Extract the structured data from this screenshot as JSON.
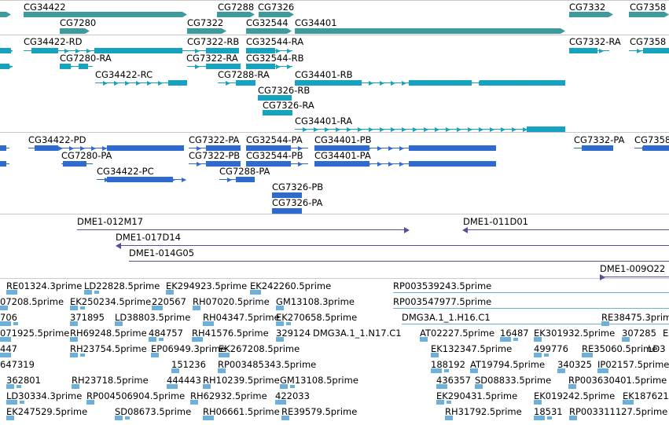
{
  "colors": {
    "gene": "#3e9a9c",
    "transcript": "#17a2c2",
    "protein": "#2f6ad0",
    "clone": "#5c4a9e",
    "est": "#6cb0de"
  },
  "gene_track": {
    "labels": [
      "CG34422",
      "CG7288",
      "CG7326",
      "CG7332",
      "CG7358",
      "CG7280",
      "CG7322",
      "CG32544",
      "CG34401"
    ]
  },
  "transcript_track": {
    "labels": [
      "CG34422-RD",
      "CG7322-RB",
      "CG32544-RA",
      "CG7332-RA",
      "CG7358",
      "CG7280-RA",
      "CG7322-RA",
      "CG32544-RB",
      "CG34422-RC",
      "CG7288-RA",
      "CG34401-RB",
      "CG7326-RB",
      "CG7326-RA",
      "CG34401-RA"
    ]
  },
  "protein_track": {
    "labels": [
      "CG34422-PD",
      "CG7322-PA",
      "CG32544-PA",
      "CG34401-PB",
      "CG7332-PA",
      "CG7358",
      "CG7280-PA",
      "CG7322-PB",
      "CG32544-PB",
      "CG34401-PA",
      "CG34422-PC",
      "CG7288-PA",
      "CG7326-PB",
      "CG7326-PA"
    ]
  },
  "clone_track": {
    "labels": [
      "DME1-012M17",
      "DME1-011D01",
      "DME1-017D14",
      "DME1-014G05",
      "DME1-009O22"
    ]
  },
  "est_track": {
    "labels": [
      "RE01324.3prime",
      "LD22828.5prime",
      "EK294923.5prime",
      "EK242260.5prime",
      "RP003539243.5prime",
      "07208.5prime",
      "EK250234.5prime",
      "220567",
      "RH07020.5prime",
      "GM13108.3prime",
      "RP003547977.5prime",
      "706",
      "371895",
      "LD38803.5prime",
      "RH04347.5prime",
      "EK270658.5prime",
      "DMG3A.1_1.H16.C1",
      "RE38475.3prime",
      "071925.5prime",
      "RH69248.5prime",
      "484757",
      "RH41576.5prime",
      "329124",
      "DMG3A.1_1.N17.C1",
      "AT02227.5prime",
      "16487",
      "EK301932.5prime",
      "307285",
      "EM",
      "447",
      "RH23754.5prime",
      "EP06949.3prime",
      "EK267208.5prime",
      "EK132347.5prime",
      "499776",
      "RE35060.5prime",
      "LD3",
      "647319",
      "151236",
      "RP003485343.5prime",
      "188192",
      "AT19794.5prime",
      "340325",
      "IP02157.5prime",
      "362801",
      "RH23718.5prime",
      "444443",
      "RH10239.5prime",
      "GM13108.5prime",
      "436357",
      "SD08833.5prime",
      "RP003630401.5prime",
      "LD30334.3prime",
      "RP004506904.5prime",
      "RH62932.5prime",
      "422033",
      "EK290431.5prime",
      "EK019242.5prime",
      "EK187621",
      "EK247529.5prime",
      "SD08673.5prime",
      "RH06661.5prime",
      "RE39579.5prime",
      "RH31792.5prime",
      "18531",
      "RP003311127.5prime"
    ]
  }
}
